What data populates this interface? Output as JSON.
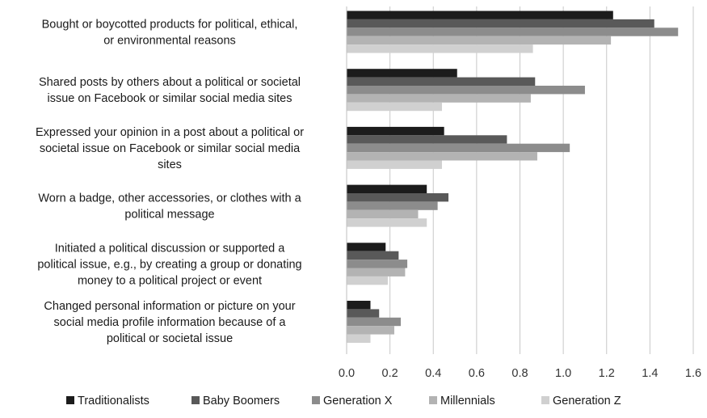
{
  "chart_data": {
    "type": "bar",
    "orientation": "horizontal",
    "title": "",
    "xlabel": "",
    "ylabel": "",
    "xlim": [
      0,
      1.6
    ],
    "x_ticks": [
      "0.0",
      "0.2",
      "0.4",
      "0.6",
      "0.8",
      "1.0",
      "1.2",
      "1.4",
      "1.6"
    ],
    "grid": "vertical",
    "legend_position": "bottom",
    "categories": [
      [
        "Bought or boycotted products for political, ethical,",
        "or environmental reasons"
      ],
      [
        "Shared posts by others about a political or societal",
        "issue on Facebook or similar social media sites"
      ],
      [
        "Expressed your opinion in a post about a political or",
        "societal issue on Facebook or similar social media",
        "sites"
      ],
      [
        "Worn a badge, other accessories, or clothes with a",
        "political message"
      ],
      [
        "Initiated a political discussion or supported a",
        "political issue, e.g., by creating a group or donating",
        "money to a political project or event"
      ],
      [
        "Changed personal information or picture on your",
        "social media profile information because of a",
        "political or societal issue"
      ]
    ],
    "series": [
      {
        "name": "Traditionalists",
        "color": "#1c1c1c",
        "values": [
          1.23,
          0.51,
          0.45,
          0.37,
          0.18,
          0.11
        ]
      },
      {
        "name": "Baby Boomers",
        "color": "#595959",
        "values": [
          1.42,
          0.87,
          0.74,
          0.47,
          0.24,
          0.15
        ]
      },
      {
        "name": "Generation X",
        "color": "#8c8c8c",
        "values": [
          1.53,
          1.1,
          1.03,
          0.42,
          0.28,
          0.25
        ]
      },
      {
        "name": "Millennials",
        "color": "#b3b3b3",
        "values": [
          1.22,
          0.85,
          0.88,
          0.33,
          0.27,
          0.22
        ]
      },
      {
        "name": "Generation Z",
        "color": "#d0d0d0",
        "values": [
          0.86,
          0.44,
          0.44,
          0.37,
          0.19,
          0.11
        ]
      }
    ]
  }
}
